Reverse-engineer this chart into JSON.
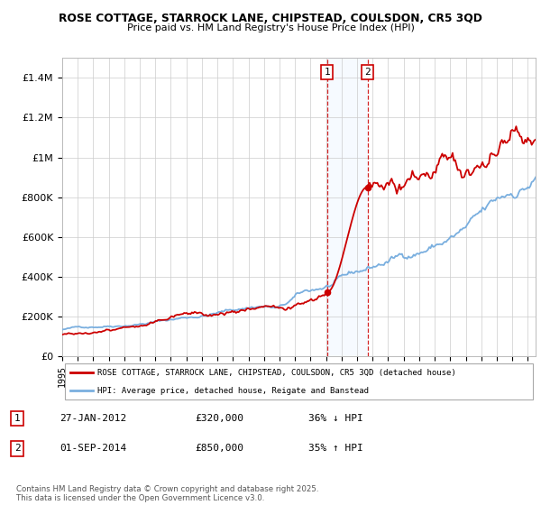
{
  "title_line1": "ROSE COTTAGE, STARROCK LANE, CHIPSTEAD, COULSDON, CR5 3QD",
  "title_line2": "Price paid vs. HM Land Registry's House Price Index (HPI)",
  "legend_label1": "ROSE COTTAGE, STARROCK LANE, CHIPSTEAD, COULSDON, CR5 3QD (detached house)",
  "legend_label2": "HPI: Average price, detached house, Reigate and Banstead",
  "sale1_date": "27-JAN-2012",
  "sale1_price": 320000,
  "sale2_date": "01-SEP-2014",
  "sale2_price": 850000,
  "sale1_pct": "36% ↓ HPI",
  "sale2_pct": "35% ↑ HPI",
  "footnote": "Contains HM Land Registry data © Crown copyright and database right 2025.\nThis data is licensed under the Open Government Licence v3.0.",
  "red_color": "#cc0000",
  "blue_color": "#7aafdf",
  "shade_color": "#ddeeff",
  "ylim": [
    0,
    1500000
  ],
  "yticks": [
    0,
    200000,
    400000,
    600000,
    800000,
    1000000,
    1200000,
    1400000
  ],
  "ytick_labels": [
    "£0",
    "£200K",
    "£400K",
    "£600K",
    "£800K",
    "£1M",
    "£1.2M",
    "£1.4M"
  ],
  "xstart": 1995.0,
  "xend": 2025.5,
  "grid_color": "#cccccc",
  "sale1_year": 2012.07,
  "sale2_year": 2014.67
}
